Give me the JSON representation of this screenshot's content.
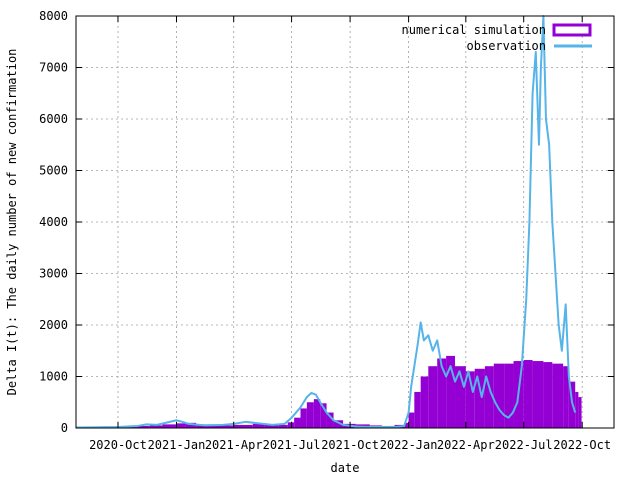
{
  "chart_data": {
    "type": "bar",
    "xlabel": "date",
    "ylabel": "Delta I(t): The daily number of new confirmation",
    "x_range": [
      "2020-07-27",
      "2022-11-20"
    ],
    "ylim": [
      0,
      8000
    ],
    "y_ticks": [
      0,
      1000,
      2000,
      3000,
      4000,
      5000,
      6000,
      7000,
      8000
    ],
    "x_ticks": [
      {
        "label": "2020-Oct",
        "date": "2020-10-01"
      },
      {
        "label": "2021-Jan",
        "date": "2021-01-01"
      },
      {
        "label": "2021-Apr",
        "date": "2021-04-01"
      },
      {
        "label": "2021-Jul",
        "date": "2021-07-01"
      },
      {
        "label": "2021-Oct",
        "date": "2021-10-01"
      },
      {
        "label": "2022-Jan",
        "date": "2022-01-01"
      },
      {
        "label": "2022-Apr",
        "date": "2022-04-01"
      },
      {
        "label": "2022-Jul",
        "date": "2022-07-01"
      },
      {
        "label": "2022-Oct",
        "date": "2022-10-01"
      }
    ],
    "grid": true,
    "legend_position": "top-right",
    "series": [
      {
        "name": "numerical simulation",
        "style": "filled-bars",
        "color": "#9400d3",
        "points": [
          [
            "2020-07-27",
            20
          ],
          [
            "2020-08-15",
            25
          ],
          [
            "2020-09-01",
            30
          ],
          [
            "2020-09-20",
            30
          ],
          [
            "2020-10-10",
            35
          ],
          [
            "2020-11-01",
            40
          ],
          [
            "2020-11-20",
            50
          ],
          [
            "2020-12-10",
            70
          ],
          [
            "2021-01-01",
            90
          ],
          [
            "2021-01-15",
            100
          ],
          [
            "2021-02-01",
            70
          ],
          [
            "2021-03-01",
            50
          ],
          [
            "2021-04-01",
            60
          ],
          [
            "2021-05-01",
            80
          ],
          [
            "2021-05-20",
            70
          ],
          [
            "2021-06-10",
            60
          ],
          [
            "2021-06-25",
            110
          ],
          [
            "2021-07-05",
            200
          ],
          [
            "2021-07-15",
            380
          ],
          [
            "2021-07-25",
            500
          ],
          [
            "2021-08-05",
            560
          ],
          [
            "2021-08-15",
            480
          ],
          [
            "2021-08-25",
            300
          ],
          [
            "2021-09-05",
            150
          ],
          [
            "2021-09-20",
            80
          ],
          [
            "2021-10-10",
            70
          ],
          [
            "2021-11-01",
            50
          ],
          [
            "2021-11-20",
            40
          ],
          [
            "2021-12-10",
            60
          ],
          [
            "2021-12-25",
            100
          ],
          [
            "2022-01-01",
            300
          ],
          [
            "2022-01-10",
            700
          ],
          [
            "2022-01-20",
            1000
          ],
          [
            "2022-02-01",
            1200
          ],
          [
            "2022-02-15",
            1350
          ],
          [
            "2022-03-01",
            1400
          ],
          [
            "2022-03-15",
            1200
          ],
          [
            "2022-04-01",
            1100
          ],
          [
            "2022-04-15",
            1150
          ],
          [
            "2022-05-01",
            1200
          ],
          [
            "2022-05-15",
            1250
          ],
          [
            "2022-06-01",
            1250
          ],
          [
            "2022-06-15",
            1300
          ],
          [
            "2022-07-01",
            1320
          ],
          [
            "2022-07-15",
            1300
          ],
          [
            "2022-08-01",
            1280
          ],
          [
            "2022-08-15",
            1250
          ],
          [
            "2022-09-01",
            1200
          ],
          [
            "2022-09-10",
            900
          ],
          [
            "2022-09-20",
            700
          ],
          [
            "2022-09-25",
            600
          ]
        ]
      },
      {
        "name": "observation",
        "style": "line",
        "color": "#56b4e9",
        "points": [
          [
            "2020-07-27",
            10
          ],
          [
            "2020-09-01",
            15
          ],
          [
            "2020-10-01",
            20
          ],
          [
            "2020-11-01",
            40
          ],
          [
            "2020-11-15",
            70
          ],
          [
            "2020-12-01",
            60
          ],
          [
            "2020-12-15",
            100
          ],
          [
            "2021-01-01",
            150
          ],
          [
            "2021-01-10",
            120
          ],
          [
            "2021-01-20",
            80
          ],
          [
            "2021-02-15",
            50
          ],
          [
            "2021-03-15",
            60
          ],
          [
            "2021-04-01",
            80
          ],
          [
            "2021-04-20",
            120
          ],
          [
            "2021-05-10",
            90
          ],
          [
            "2021-06-01",
            60
          ],
          [
            "2021-06-20",
            80
          ],
          [
            "2021-07-01",
            200
          ],
          [
            "2021-07-15",
            400
          ],
          [
            "2021-07-25",
            600
          ],
          [
            "2021-08-01",
            680
          ],
          [
            "2021-08-08",
            650
          ],
          [
            "2021-08-15",
            500
          ],
          [
            "2021-08-25",
            300
          ],
          [
            "2021-09-05",
            150
          ],
          [
            "2021-09-20",
            60
          ],
          [
            "2021-10-10",
            30
          ],
          [
            "2021-11-01",
            20
          ],
          [
            "2021-11-20",
            20
          ],
          [
            "2021-12-10",
            20
          ],
          [
            "2021-12-25",
            40
          ],
          [
            "2022-01-01",
            300
          ],
          [
            "2022-01-05",
            800
          ],
          [
            "2022-01-10",
            1200
          ],
          [
            "2022-01-15",
            1600
          ],
          [
            "2022-01-20",
            2050
          ],
          [
            "2022-01-25",
            1700
          ],
          [
            "2022-02-01",
            1800
          ],
          [
            "2022-02-08",
            1500
          ],
          [
            "2022-02-15",
            1700
          ],
          [
            "2022-02-22",
            1200
          ],
          [
            "2022-03-01",
            1000
          ],
          [
            "2022-03-08",
            1200
          ],
          [
            "2022-03-15",
            900
          ],
          [
            "2022-03-22",
            1100
          ],
          [
            "2022-03-29",
            800
          ],
          [
            "2022-04-05",
            1100
          ],
          [
            "2022-04-12",
            700
          ],
          [
            "2022-04-19",
            1000
          ],
          [
            "2022-04-26",
            600
          ],
          [
            "2022-05-03",
            1000
          ],
          [
            "2022-05-10",
            700
          ],
          [
            "2022-05-17",
            500
          ],
          [
            "2022-05-24",
            350
          ],
          [
            "2022-05-31",
            250
          ],
          [
            "2022-06-07",
            200
          ],
          [
            "2022-06-14",
            300
          ],
          [
            "2022-06-21",
            500
          ],
          [
            "2022-06-28",
            1200
          ],
          [
            "2022-07-05",
            2500
          ],
          [
            "2022-07-10",
            4000
          ],
          [
            "2022-07-15",
            6500
          ],
          [
            "2022-07-20",
            7300
          ],
          [
            "2022-07-25",
            5500
          ],
          [
            "2022-07-28",
            7000
          ],
          [
            "2022-08-01",
            8000
          ],
          [
            "2022-08-05",
            6000
          ],
          [
            "2022-08-10",
            5500
          ],
          [
            "2022-08-15",
            4000
          ],
          [
            "2022-08-20",
            3000
          ],
          [
            "2022-08-25",
            2000
          ],
          [
            "2022-08-30",
            1500
          ],
          [
            "2022-09-05",
            2400
          ],
          [
            "2022-09-10",
            1000
          ],
          [
            "2022-09-15",
            500
          ],
          [
            "2022-09-20",
            300
          ]
        ]
      }
    ]
  }
}
